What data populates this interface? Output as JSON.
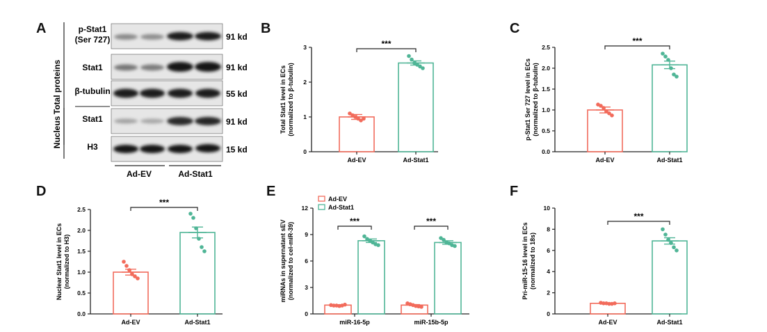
{
  "panel_letters": [
    "A",
    "B",
    "C",
    "D",
    "E",
    "F"
  ],
  "blot": {
    "groups": [
      "Total proteins",
      "Nucleus"
    ],
    "lanes": [
      "Ad-EV",
      "Ad-Stat1"
    ],
    "rows": [
      {
        "protein_line1": "p-Stat1",
        "protein_line2": "(Ser 727)",
        "size": "91 kd"
      },
      {
        "protein_line1": "Stat1",
        "protein_line2": "",
        "size": "91 kd"
      },
      {
        "protein_line1": "β-tubulin",
        "protein_line2": "",
        "size": "55 kd"
      },
      {
        "protein_line1": "Stat1",
        "protein_line2": "",
        "size": "91 kd"
      },
      {
        "protein_line1": "H3",
        "protein_line2": "",
        "size": "15 kd"
      }
    ]
  },
  "colors": {
    "ev": "#f26b5b",
    "stat1": "#4fb596",
    "axis": "#222222"
  },
  "chart_data": [
    {
      "panel": "B",
      "type": "bar",
      "categories": [
        "Ad-EV",
        "Ad-Stat1"
      ],
      "values": [
        1.0,
        2.55
      ],
      "sem": [
        0.07,
        0.06
      ],
      "points": [
        [
          1.1,
          1.05,
          1.0,
          0.95,
          0.9,
          0.95
        ],
        [
          2.75,
          2.65,
          2.55,
          2.5,
          2.45,
          2.4
        ]
      ],
      "ylabel": "Total Stat1 level in ECs\n(normalized to β-tubulin)",
      "ylim": [
        0,
        3
      ],
      "yticks": [
        0,
        1,
        2,
        3
      ],
      "ytick_labels": [
        "0",
        "1",
        "2",
        "3"
      ],
      "significance": "***"
    },
    {
      "panel": "C",
      "type": "bar",
      "categories": [
        "Ad-EV",
        "Ad-Stat1"
      ],
      "values": [
        1.0,
        2.08
      ],
      "sem": [
        0.07,
        0.09
      ],
      "points": [
        [
          1.13,
          1.1,
          1.05,
          0.97,
          0.92,
          0.87
        ],
        [
          2.35,
          2.28,
          2.2,
          2.0,
          1.85,
          1.8
        ]
      ],
      "ylabel": "p-Stat1 Ser 727 level in ECs\n(normalized to β-tubulin)",
      "ylim": [
        0,
        2.5
      ],
      "yticks": [
        0,
        0.5,
        1.0,
        1.5,
        2.0,
        2.5
      ],
      "ytick_labels": [
        "0.0",
        "0.5",
        "1.0",
        "1.5",
        "2.0",
        "2.5"
      ],
      "significance": "***"
    },
    {
      "panel": "D",
      "type": "bar",
      "categories": [
        "Ad-EV",
        "Ad-Stat1"
      ],
      "values": [
        1.0,
        1.95
      ],
      "sem": [
        0.07,
        0.13
      ],
      "points": [
        [
          1.25,
          1.15,
          1.05,
          0.95,
          0.9,
          0.85
        ],
        [
          2.4,
          2.3,
          2.05,
          1.8,
          1.6,
          1.5
        ]
      ],
      "ylabel": "Nuclear Stat1 level in ECs\n(normalized to H3)",
      "ylim": [
        0,
        2.5
      ],
      "yticks": [
        0,
        0.5,
        1.0,
        1.5,
        2.0,
        2.5
      ],
      "ytick_labels": [
        "0.0",
        "0.5",
        "1.0",
        "1.5",
        "2.0",
        "2.5"
      ],
      "significance": "***"
    },
    {
      "panel": "E",
      "type": "bar",
      "categories": [
        "miR-16-5p",
        "miR-15b-5p"
      ],
      "series": [
        {
          "name": "Ad-EV",
          "values": [
            1.0,
            1.0
          ],
          "sem": [
            0.05,
            0.06
          ],
          "points": [
            [
              1.0,
              0.95,
              0.95,
              0.9,
              0.95,
              1.05
            ],
            [
              1.2,
              1.1,
              1.0,
              0.9,
              0.85,
              0.8
            ]
          ]
        },
        {
          "name": "Ad-Stat1",
          "values": [
            8.3,
            8.1
          ],
          "sem": [
            0.2,
            0.2
          ],
          "points": [
            [
              8.8,
              8.5,
              8.3,
              8.1,
              7.9,
              7.8
            ],
            [
              8.6,
              8.4,
              8.1,
              8.0,
              7.8,
              7.7
            ]
          ]
        }
      ],
      "ylabel": "miRNAs in supernatant sEV\n(normalized to cel-miR-39)",
      "ylim": [
        0,
        12
      ],
      "yticks": [
        0,
        3,
        6,
        9,
        12
      ],
      "ytick_labels": [
        "0",
        "3",
        "6",
        "9",
        "12"
      ],
      "significance": [
        "***",
        "***"
      ],
      "legend_position": "top-left"
    },
    {
      "panel": "F",
      "type": "bar",
      "categories": [
        "Ad-EV",
        "Ad-Stat1"
      ],
      "values": [
        1.0,
        6.9
      ],
      "sem": [
        0.05,
        0.3
      ],
      "points": [
        [
          1.05,
          1.0,
          1.0,
          0.95,
          0.95,
          1.0
        ],
        [
          8.0,
          7.5,
          7.0,
          6.7,
          6.3,
          6.0
        ]
      ],
      "ylabel": "Pri-miR-15-16 level in ECs\n(normalized to 18s)",
      "ylim": [
        0,
        10
      ],
      "yticks": [
        0,
        2,
        4,
        6,
        8,
        10
      ],
      "ytick_labels": [
        "0",
        "2",
        "4",
        "6",
        "8",
        "10"
      ],
      "significance": "***"
    }
  ]
}
